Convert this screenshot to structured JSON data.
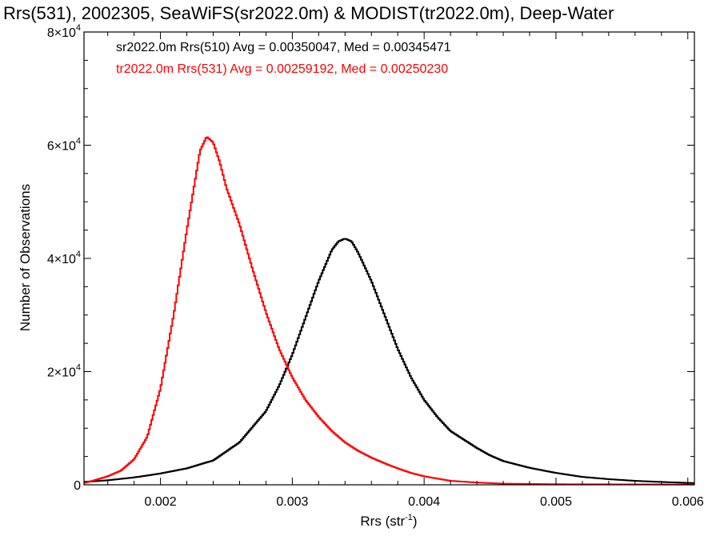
{
  "chart_data": {
    "type": "line",
    "title": "Rrs(531), 2002305, SeaWiFS(sr2022.0m) & MODIST(tr2022.0m), Deep-Water",
    "xlabel": "Rrs (str",
    "xlabel_sup": "-1",
    "xlabel_close": ")",
    "ylabel": "Number of Observations",
    "xlim": [
      0.00142,
      0.00605
    ],
    "ylim": [
      0,
      80000
    ],
    "x_ticks": [
      0.002,
      0.003,
      0.004,
      0.005,
      0.006
    ],
    "x_tick_labels": [
      "0.002",
      "0.003",
      "0.004",
      "0.005",
      "0.006"
    ],
    "y_ticks": [
      0,
      20000,
      40000,
      60000,
      80000
    ],
    "y_tick_labels": [
      {
        "base": "0",
        "exp": ""
      },
      {
        "base": "2×10",
        "exp": "4"
      },
      {
        "base": "4×10",
        "exp": "4"
      },
      {
        "base": "6×10",
        "exp": "4"
      },
      {
        "base": "8×10",
        "exp": "4"
      }
    ],
    "grid": false,
    "legend_position": "top-left",
    "series": [
      {
        "name": "sr2022.0m Rrs(510) Avg = 0.00350047, Med = 0.00345471",
        "color": "#000000",
        "x": [
          0.00142,
          0.0016,
          0.0018,
          0.002,
          0.0022,
          0.0024,
          0.0026,
          0.0028,
          0.0029,
          0.003,
          0.0031,
          0.0032,
          0.0033,
          0.00335,
          0.0034,
          0.00345,
          0.0035,
          0.0036,
          0.0037,
          0.0038,
          0.0039,
          0.004,
          0.0041,
          0.0042,
          0.0043,
          0.0044,
          0.0045,
          0.0046,
          0.0048,
          0.005,
          0.0052,
          0.0054,
          0.0056,
          0.0058,
          0.00605
        ],
        "y": [
          500,
          800,
          1300,
          2000,
          2900,
          4300,
          7500,
          13000,
          17500,
          23000,
          29500,
          36000,
          41500,
          43000,
          43500,
          43000,
          41000,
          36000,
          30000,
          24000,
          19000,
          15000,
          12000,
          9500,
          8000,
          6500,
          5200,
          4200,
          3000,
          2100,
          1400,
          1000,
          700,
          500,
          300
        ]
      },
      {
        "name": "tr2022.0m Rrs(531) Avg = 0.00259192, Med = 0.00250230",
        "color": "#ff0000",
        "x": [
          0.00142,
          0.0015,
          0.0016,
          0.0017,
          0.0018,
          0.0019,
          0.002,
          0.0021,
          0.0022,
          0.00225,
          0.0023,
          0.00235,
          0.0024,
          0.00245,
          0.0025,
          0.0026,
          0.0027,
          0.0028,
          0.0029,
          0.003,
          0.0031,
          0.0032,
          0.0033,
          0.0034,
          0.0035,
          0.0036,
          0.0037,
          0.0038,
          0.0039,
          0.004,
          0.0042,
          0.0044,
          0.0046,
          0.005,
          0.00605
        ],
        "y": [
          300,
          800,
          1500,
          2500,
          4500,
          8500,
          17000,
          30000,
          45000,
          52000,
          59000,
          61500,
          60500,
          57000,
          52500,
          46000,
          38000,
          30500,
          24000,
          19000,
          15000,
          12000,
          9500,
          7500,
          6000,
          4800,
          3800,
          2900,
          2100,
          1500,
          700,
          400,
          200,
          100,
          50
        ]
      }
    ]
  }
}
